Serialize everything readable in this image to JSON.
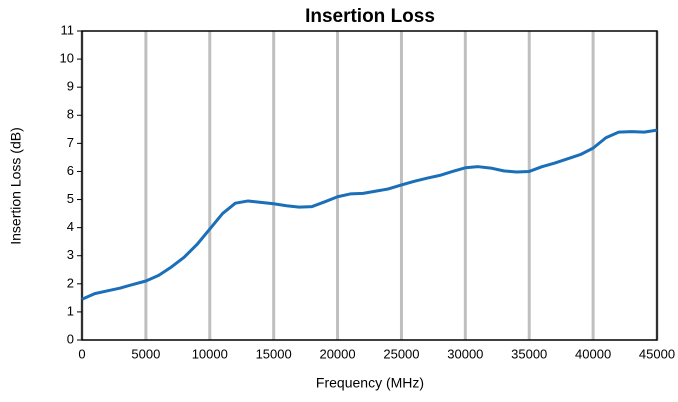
{
  "chart_data": {
    "type": "line",
    "title": "Insertion Loss",
    "x_label": "Frequency (MHz)",
    "y_label": "Insertion Loss (dB)",
    "x": [
      0,
      1000,
      2000,
      3000,
      4000,
      5000,
      6000,
      7000,
      8000,
      9000,
      10000,
      11000,
      12000,
      13000,
      14000,
      15000,
      16000,
      17000,
      18000,
      19000,
      20000,
      21000,
      22000,
      23000,
      24000,
      25000,
      26000,
      27000,
      28000,
      29000,
      30000,
      31000,
      32000,
      33000,
      34000,
      35000,
      36000,
      37000,
      38000,
      39000,
      40000,
      41000,
      42000,
      43000,
      44000,
      45000
    ],
    "series": [
      {
        "name": "Insertion Loss",
        "color": "#1a6fb8",
        "values": [
          1.45,
          1.65,
          1.75,
          1.85,
          1.98,
          2.1,
          2.3,
          2.6,
          2.95,
          3.4,
          3.95,
          4.5,
          4.87,
          4.95,
          4.9,
          4.85,
          4.78,
          4.73,
          4.75,
          4.92,
          5.1,
          5.2,
          5.22,
          5.3,
          5.38,
          5.52,
          5.65,
          5.76,
          5.86,
          6.0,
          6.13,
          6.17,
          6.12,
          6.02,
          5.98,
          6.0,
          6.17,
          6.3,
          6.45,
          6.6,
          6.83,
          7.2,
          7.4,
          7.42,
          7.4,
          7.47
        ]
      }
    ],
    "xlim": [
      0,
      45000
    ],
    "xticks": [
      0,
      5000,
      10000,
      15000,
      20000,
      25000,
      30000,
      35000,
      40000,
      45000
    ],
    "ylim": [
      0,
      11
    ],
    "yticks": [
      0,
      1,
      2,
      3,
      4,
      5,
      6,
      7,
      8,
      9,
      10,
      11
    ],
    "grid": "x",
    "grid_color": "#bfbfbf"
  }
}
